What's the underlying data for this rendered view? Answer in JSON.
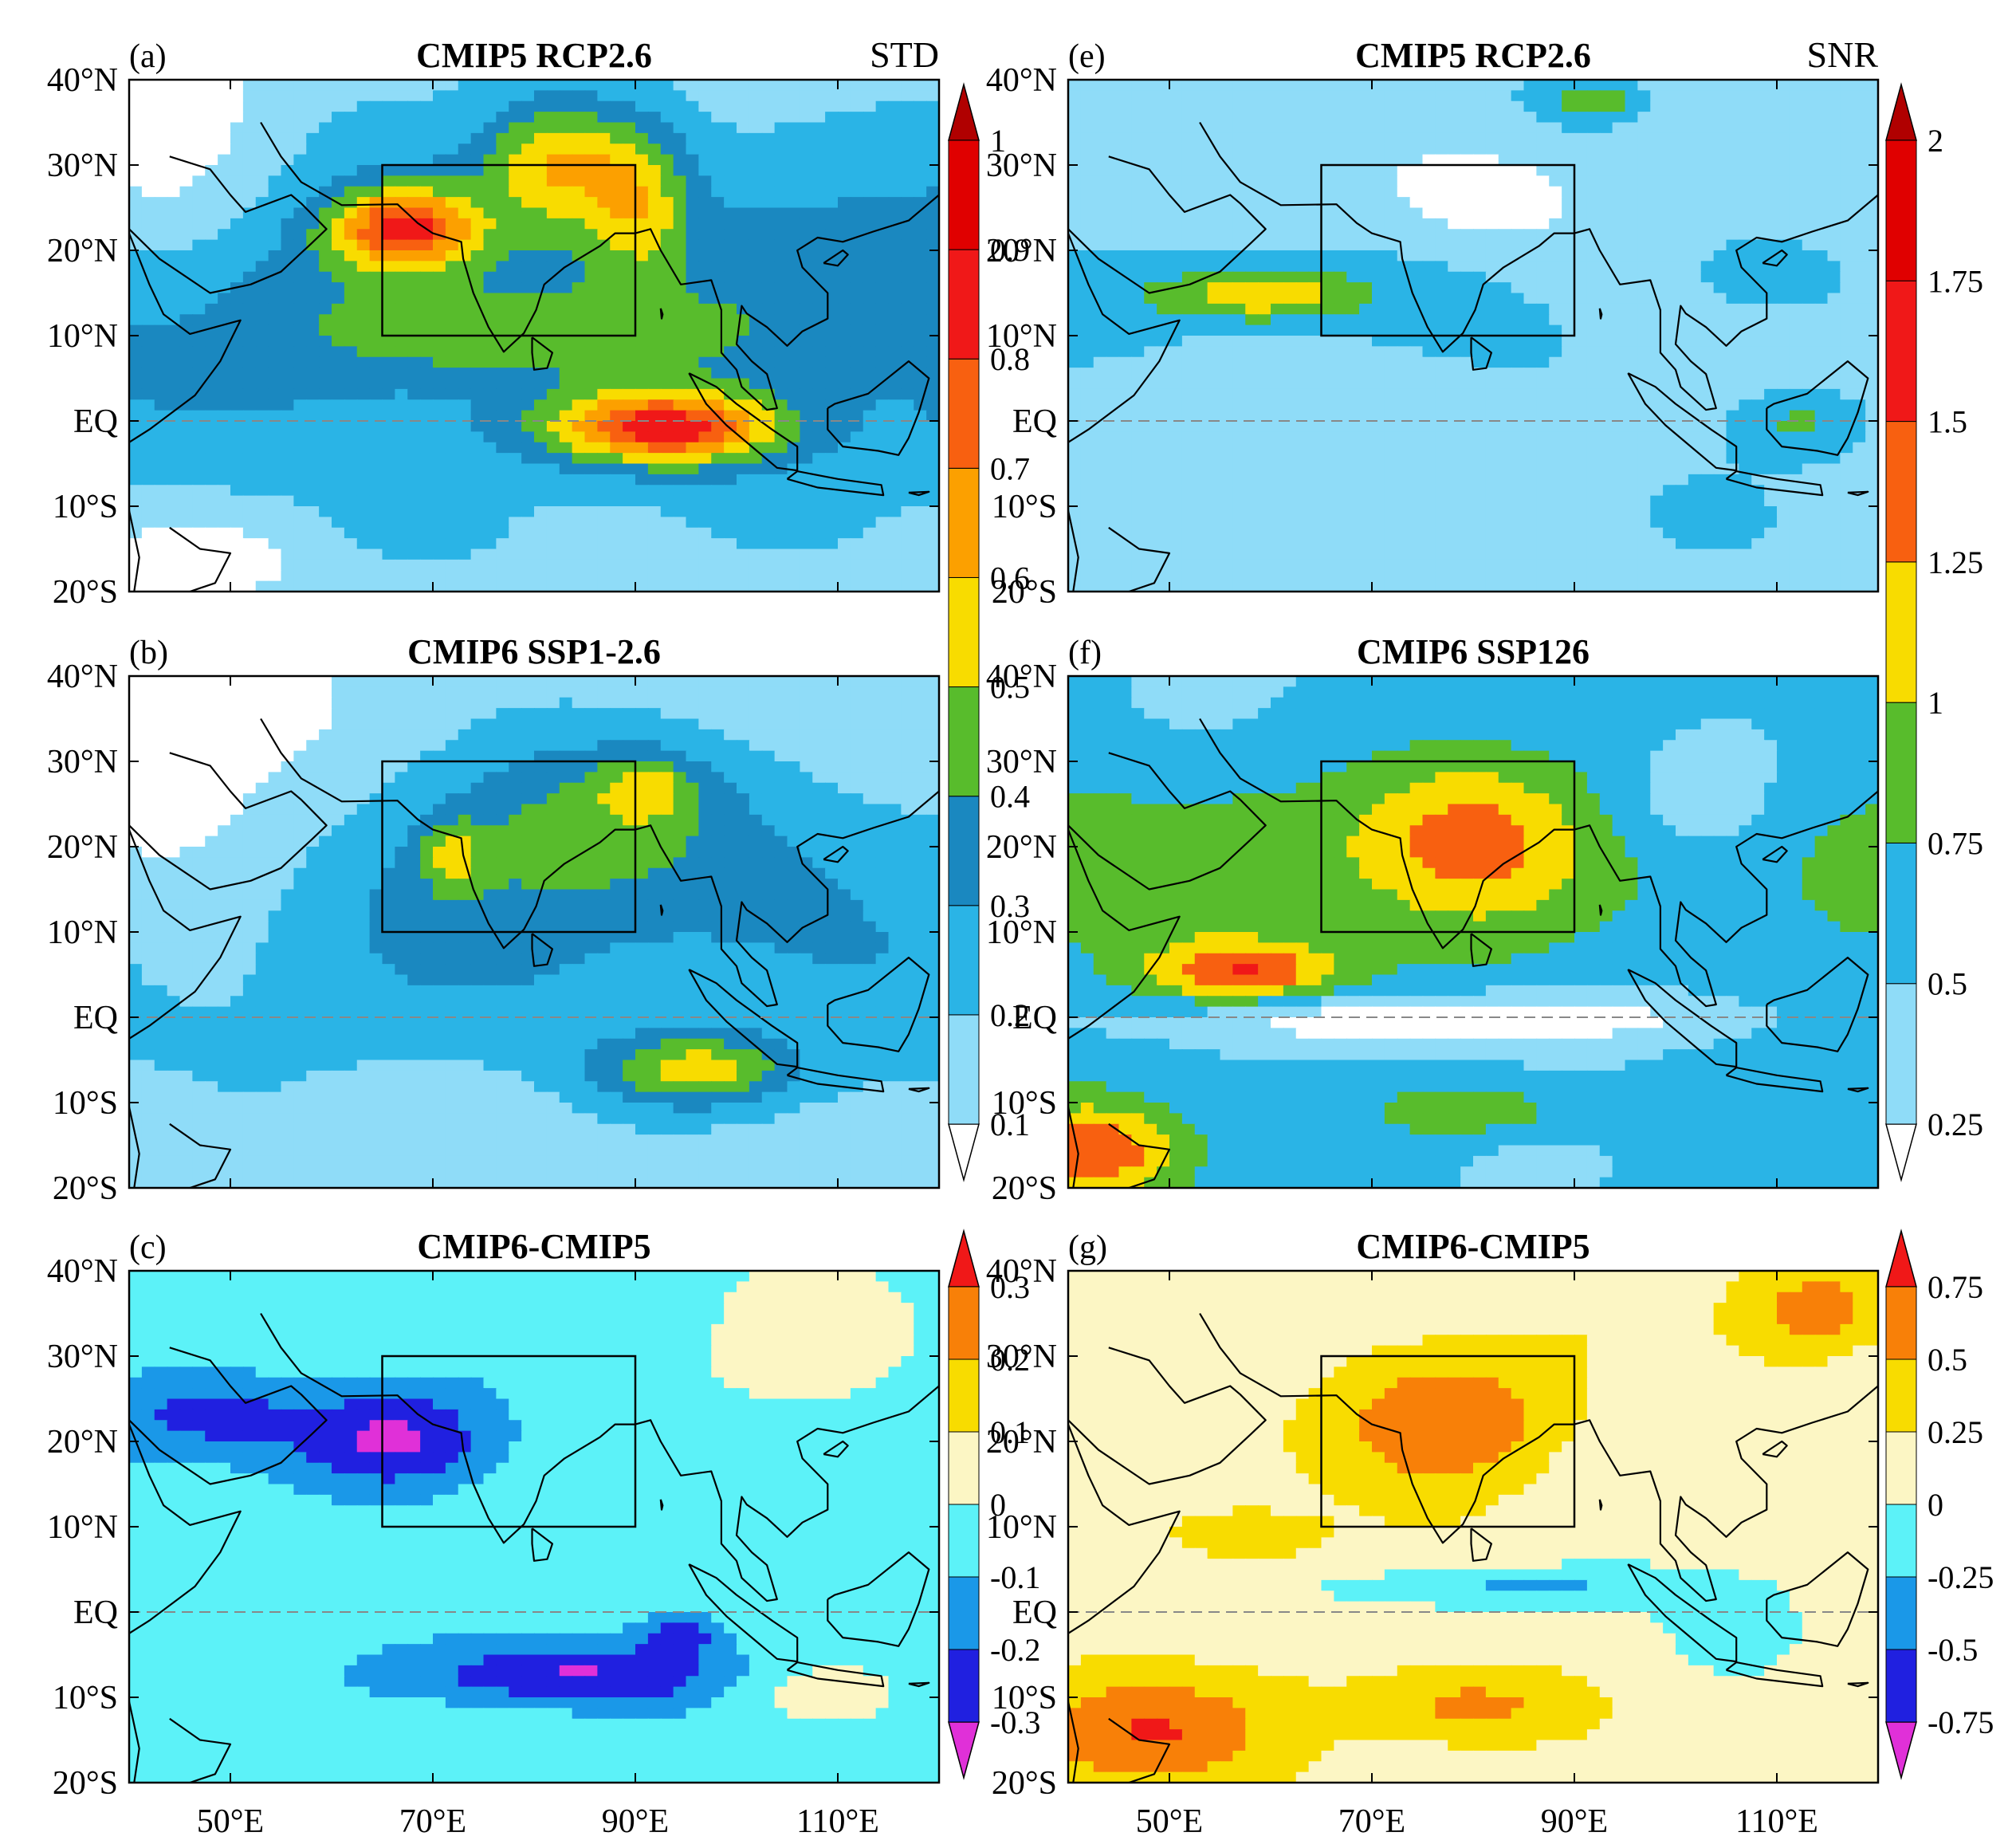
{
  "figure": {
    "panels": [
      {
        "id": "a",
        "letter": "(a)",
        "title": "CMIP5 RCP2.6",
        "corner_label": "STD",
        "variant": "std_rcp",
        "colorbar": "std"
      },
      {
        "id": "b",
        "letter": "(b)",
        "title": "CMIP6 SSP1-2.6",
        "corner_label": "",
        "variant": "std_ssp",
        "colorbar": "std"
      },
      {
        "id": "c",
        "letter": "(c)",
        "title": "CMIP6-CMIP5",
        "corner_label": "",
        "variant": "std_diff",
        "colorbar": "std_diff"
      },
      {
        "id": "e",
        "letter": "(e)",
        "title": "CMIP5 RCP2.6",
        "corner_label": "SNR",
        "variant": "snr_rcp",
        "colorbar": "snr"
      },
      {
        "id": "f",
        "letter": "(f)",
        "title": "CMIP6 SSP126",
        "corner_label": "",
        "variant": "snr_ssp",
        "colorbar": "snr"
      },
      {
        "id": "g",
        "letter": "(g)",
        "title": "CMIP6-CMIP5",
        "corner_label": "",
        "variant": "snr_diff",
        "colorbar": "snr_diff"
      }
    ],
    "lat_ticks": [
      "40°N",
      "30°N",
      "20°N",
      "10°N",
      "EQ",
      "10°S",
      "20°S"
    ],
    "lon_ticks": [
      "50°E",
      "70°E",
      "90°E",
      "110°E"
    ],
    "box_region": {
      "lon": [
        65,
        90
      ],
      "lat": [
        10,
        30
      ]
    }
  },
  "chart_data": {
    "type": "heatmap",
    "domain": {
      "lon": [
        40,
        120
      ],
      "lat": [
        -20,
        40
      ]
    },
    "colorbars": {
      "std": {
        "levels": [
          0.1,
          0.2,
          0.3,
          0.4,
          0.5,
          0.6,
          0.7,
          0.8,
          0.9,
          1
        ],
        "labels": [
          "0.1",
          "0.2",
          "0.3",
          "0.4",
          "0.5",
          "0.6",
          "0.7",
          "0.8",
          "0.9",
          "1"
        ],
        "colors": [
          "#ffffff",
          "#8fdcf8",
          "#2ab4e6",
          "#1a88c0",
          "#58bc2c",
          "#f8dc00",
          "#fca000",
          "#f86010",
          "#f01818",
          "#e00000",
          "#b00000"
        ]
      },
      "snr": {
        "levels": [
          0.25,
          0.5,
          0.75,
          1,
          1.25,
          1.5,
          1.75,
          2
        ],
        "labels": [
          "0.25",
          "0.5",
          "0.75",
          "1",
          "1.25",
          "1.5",
          "1.75",
          "2"
        ],
        "colors": [
          "#ffffff",
          "#8fdcf8",
          "#2ab4e6",
          "#58bc2c",
          "#f8dc00",
          "#f86010",
          "#f01818",
          "#e00000",
          "#b00000"
        ]
      },
      "std_diff": {
        "levels": [
          -0.3,
          -0.2,
          -0.1,
          0,
          0.1,
          0.2,
          0.3
        ],
        "labels": [
          "-0.3",
          "-0.2",
          "-0.1",
          "0",
          "0.1",
          "0.2",
          "0.3"
        ],
        "colors": [
          "#e030d8",
          "#2020e0",
          "#1a98e8",
          "#5cf2f8",
          "#fcf6c4",
          "#f8dc00",
          "#f88008",
          "#f01818"
        ]
      },
      "snr_diff": {
        "levels": [
          -0.75,
          -0.5,
          -0.25,
          0,
          0.25,
          0.5,
          0.75
        ],
        "labels": [
          "-0.75",
          "-0.5",
          "-0.25",
          "0",
          "0.25",
          "0.5",
          "0.75"
        ],
        "colors": [
          "#e030d8",
          "#2020e0",
          "#1a98e8",
          "#5cf2f8",
          "#fcf6c4",
          "#f8dc00",
          "#f88008",
          "#f01818"
        ]
      }
    }
  }
}
